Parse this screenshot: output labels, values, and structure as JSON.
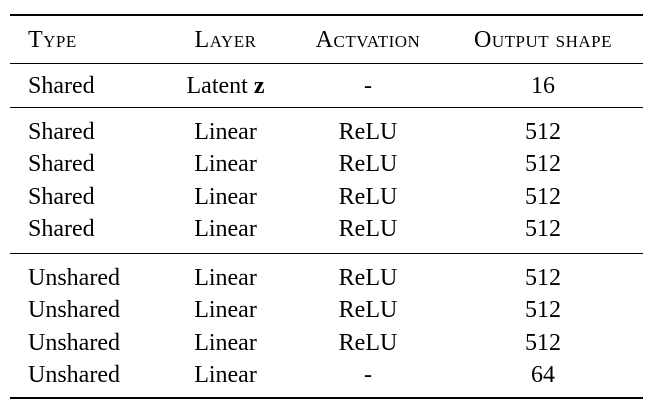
{
  "headers": {
    "type": "Type",
    "layer": "Layer",
    "activation": "Actvation",
    "output_shape": "Output shape"
  },
  "first_row": {
    "type": "Shared",
    "layer_text": "Latent ",
    "layer_symbol": "z",
    "activation": "-",
    "output": "16"
  },
  "shared_rows": [
    {
      "type": "Shared",
      "layer": "Linear",
      "activation": "ReLU",
      "output": "512"
    },
    {
      "type": "Shared",
      "layer": "Linear",
      "activation": "ReLU",
      "output": "512"
    },
    {
      "type": "Shared",
      "layer": "Linear",
      "activation": "ReLU",
      "output": "512"
    },
    {
      "type": "Shared",
      "layer": "Linear",
      "activation": "ReLU",
      "output": "512"
    }
  ],
  "unshared_rows": [
    {
      "type": "Unshared",
      "layer": "Linear",
      "activation": "ReLU",
      "output": "512"
    },
    {
      "type": "Unshared",
      "layer": "Linear",
      "activation": "ReLU",
      "output": "512"
    },
    {
      "type": "Unshared",
      "layer": "Linear",
      "activation": "ReLU",
      "output": "512"
    },
    {
      "type": "Unshared",
      "layer": "Linear",
      "activation": "-",
      "output": "64"
    }
  ]
}
